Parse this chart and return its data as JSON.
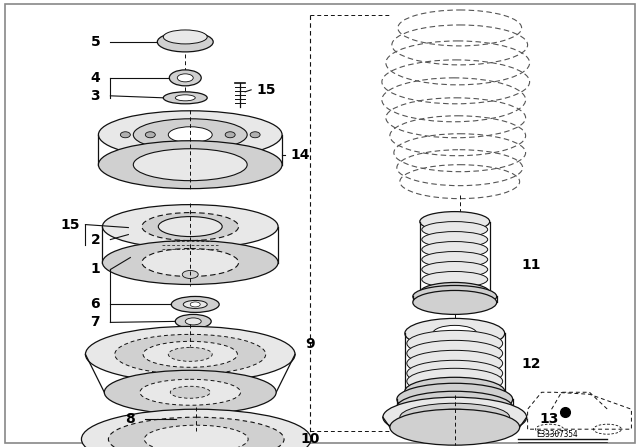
{
  "background_color": "#ffffff",
  "border_color": "#aaaaaa",
  "figsize": [
    6.4,
    4.48
  ],
  "dpi": 100,
  "line_color": "#111111",
  "dash_color": "#555555",
  "fill_light": "#e8e8e8",
  "fill_mid": "#d0d0d0",
  "fill_dark": "#b0b0b0"
}
